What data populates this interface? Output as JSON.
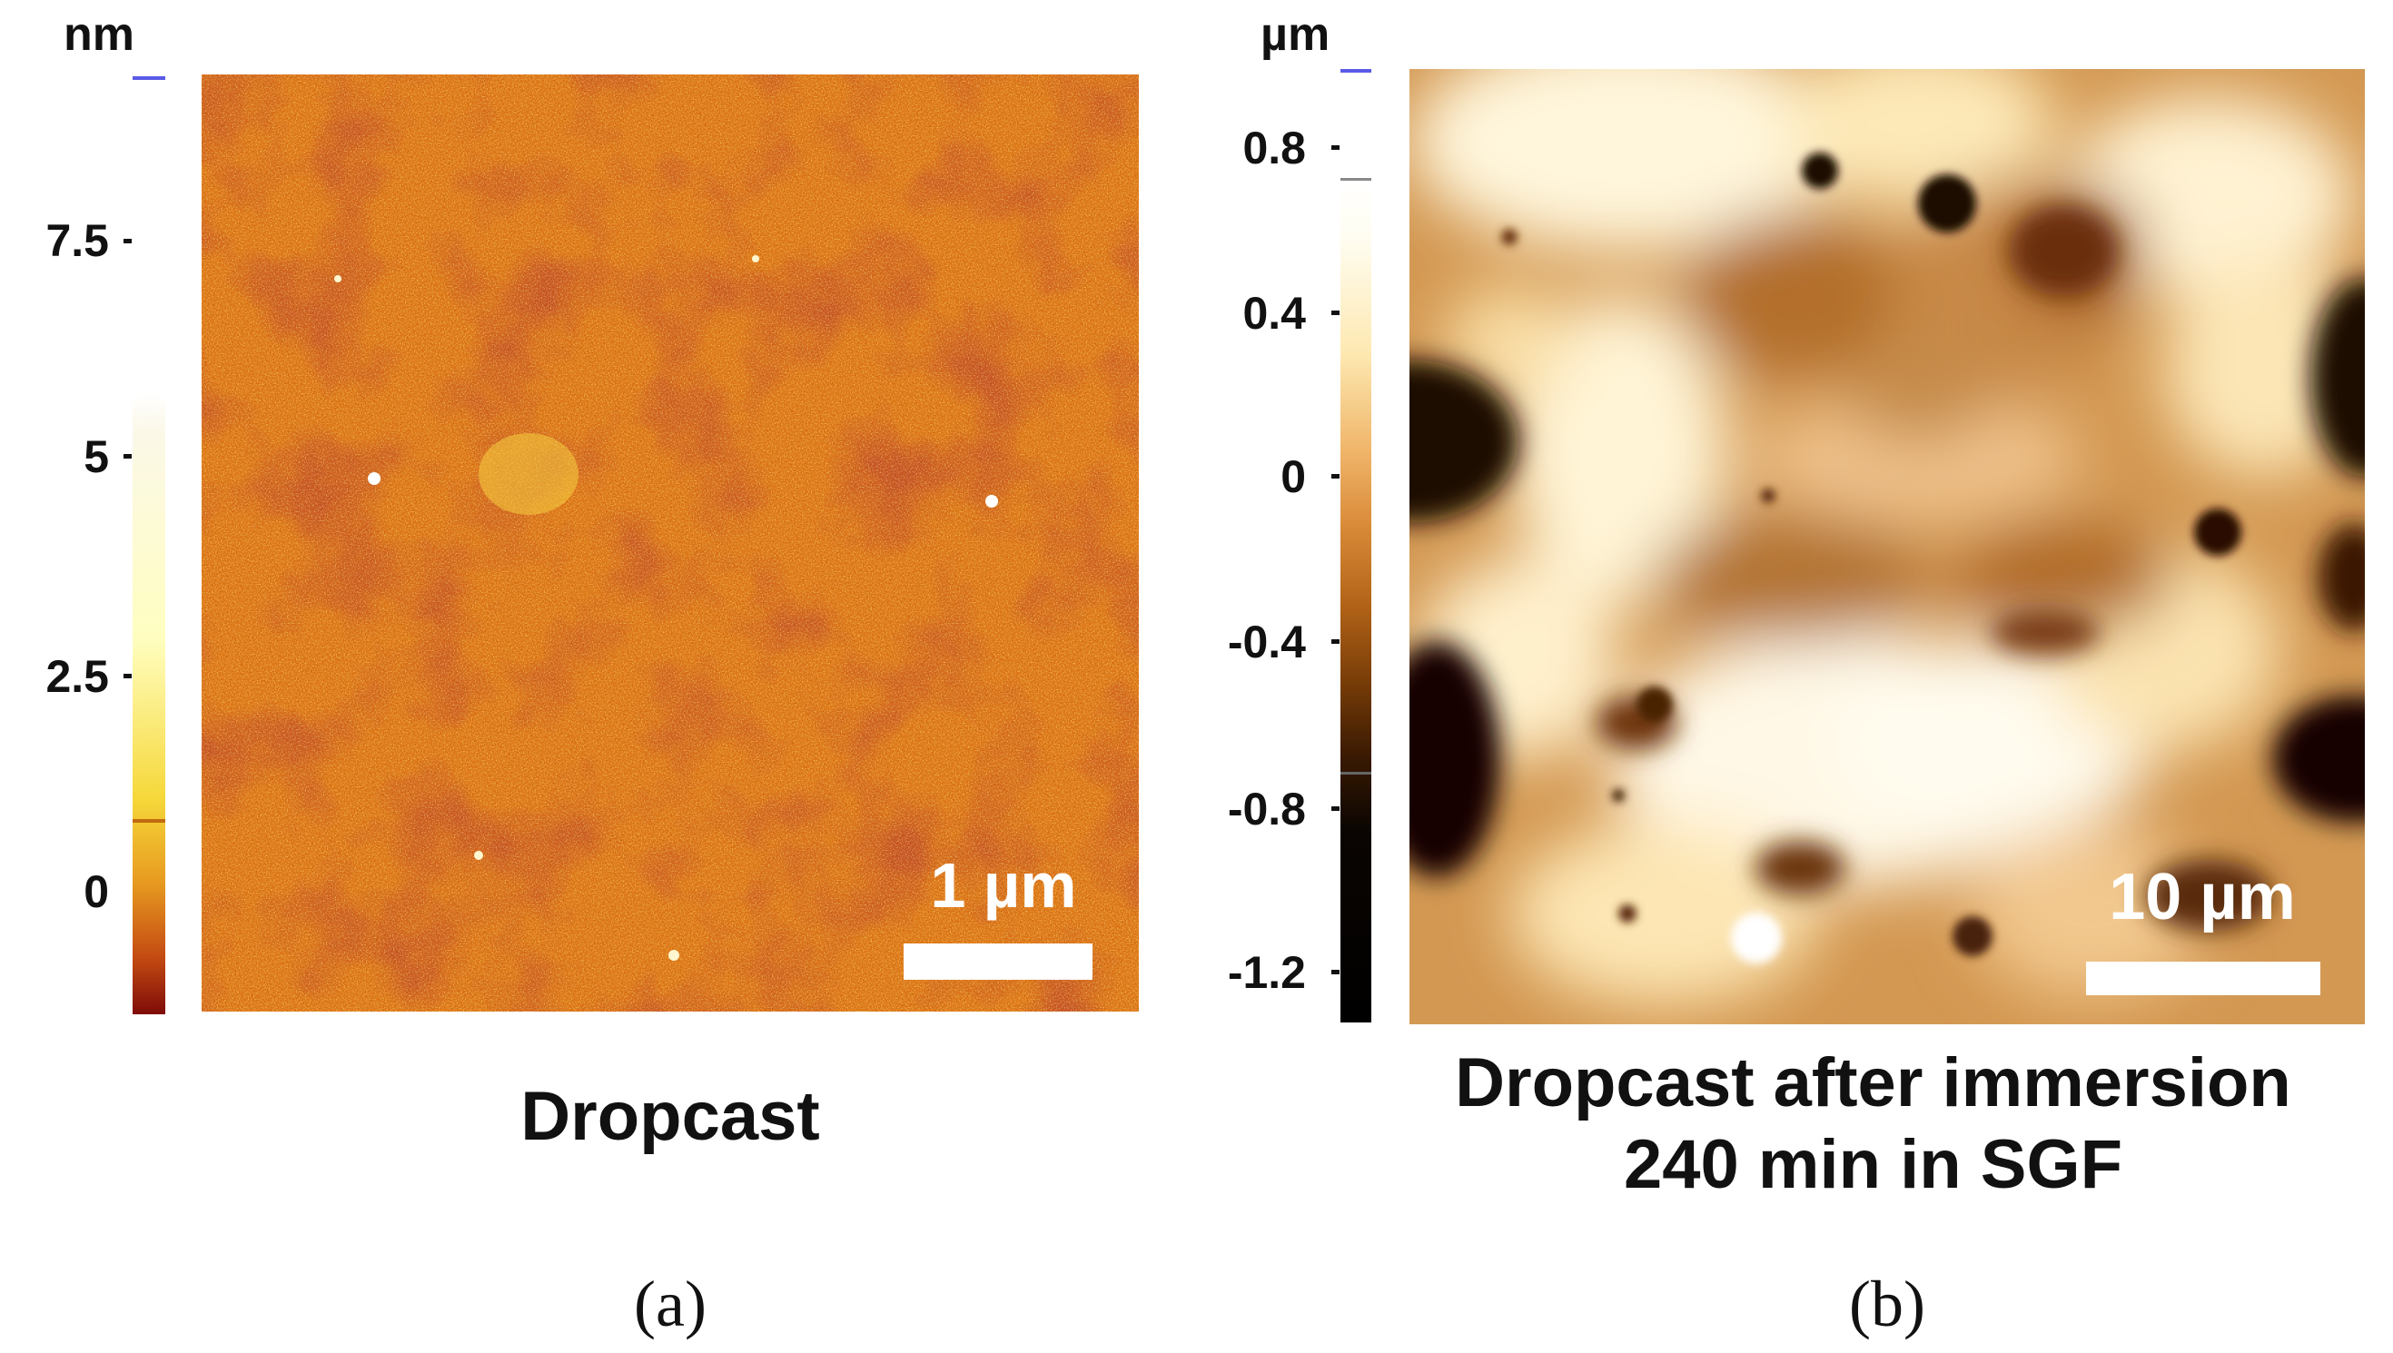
{
  "panel_a": {
    "unit": "nm",
    "ticks": [
      "7.5",
      "5",
      "2.5",
      "0"
    ],
    "scale_bar": "1 µm",
    "caption": "Dropcast",
    "label": "(a)",
    "colors": {
      "dark": "#7a0a00",
      "mid": "#e07a10",
      "light": "#fff5b0"
    }
  },
  "panel_b": {
    "unit": "µm",
    "ticks": [
      "0.8",
      "0.4",
      "0",
      "-0.4",
      "-0.8",
      "-1.2"
    ],
    "scale_bar": "10 µm",
    "caption_line1": "Dropcast after immersion",
    "caption_line2": "240 min in SGF",
    "label": "(b)",
    "colors": {
      "dark": "#1a0700",
      "mid": "#c07a2c",
      "light": "#fff8e0"
    }
  }
}
